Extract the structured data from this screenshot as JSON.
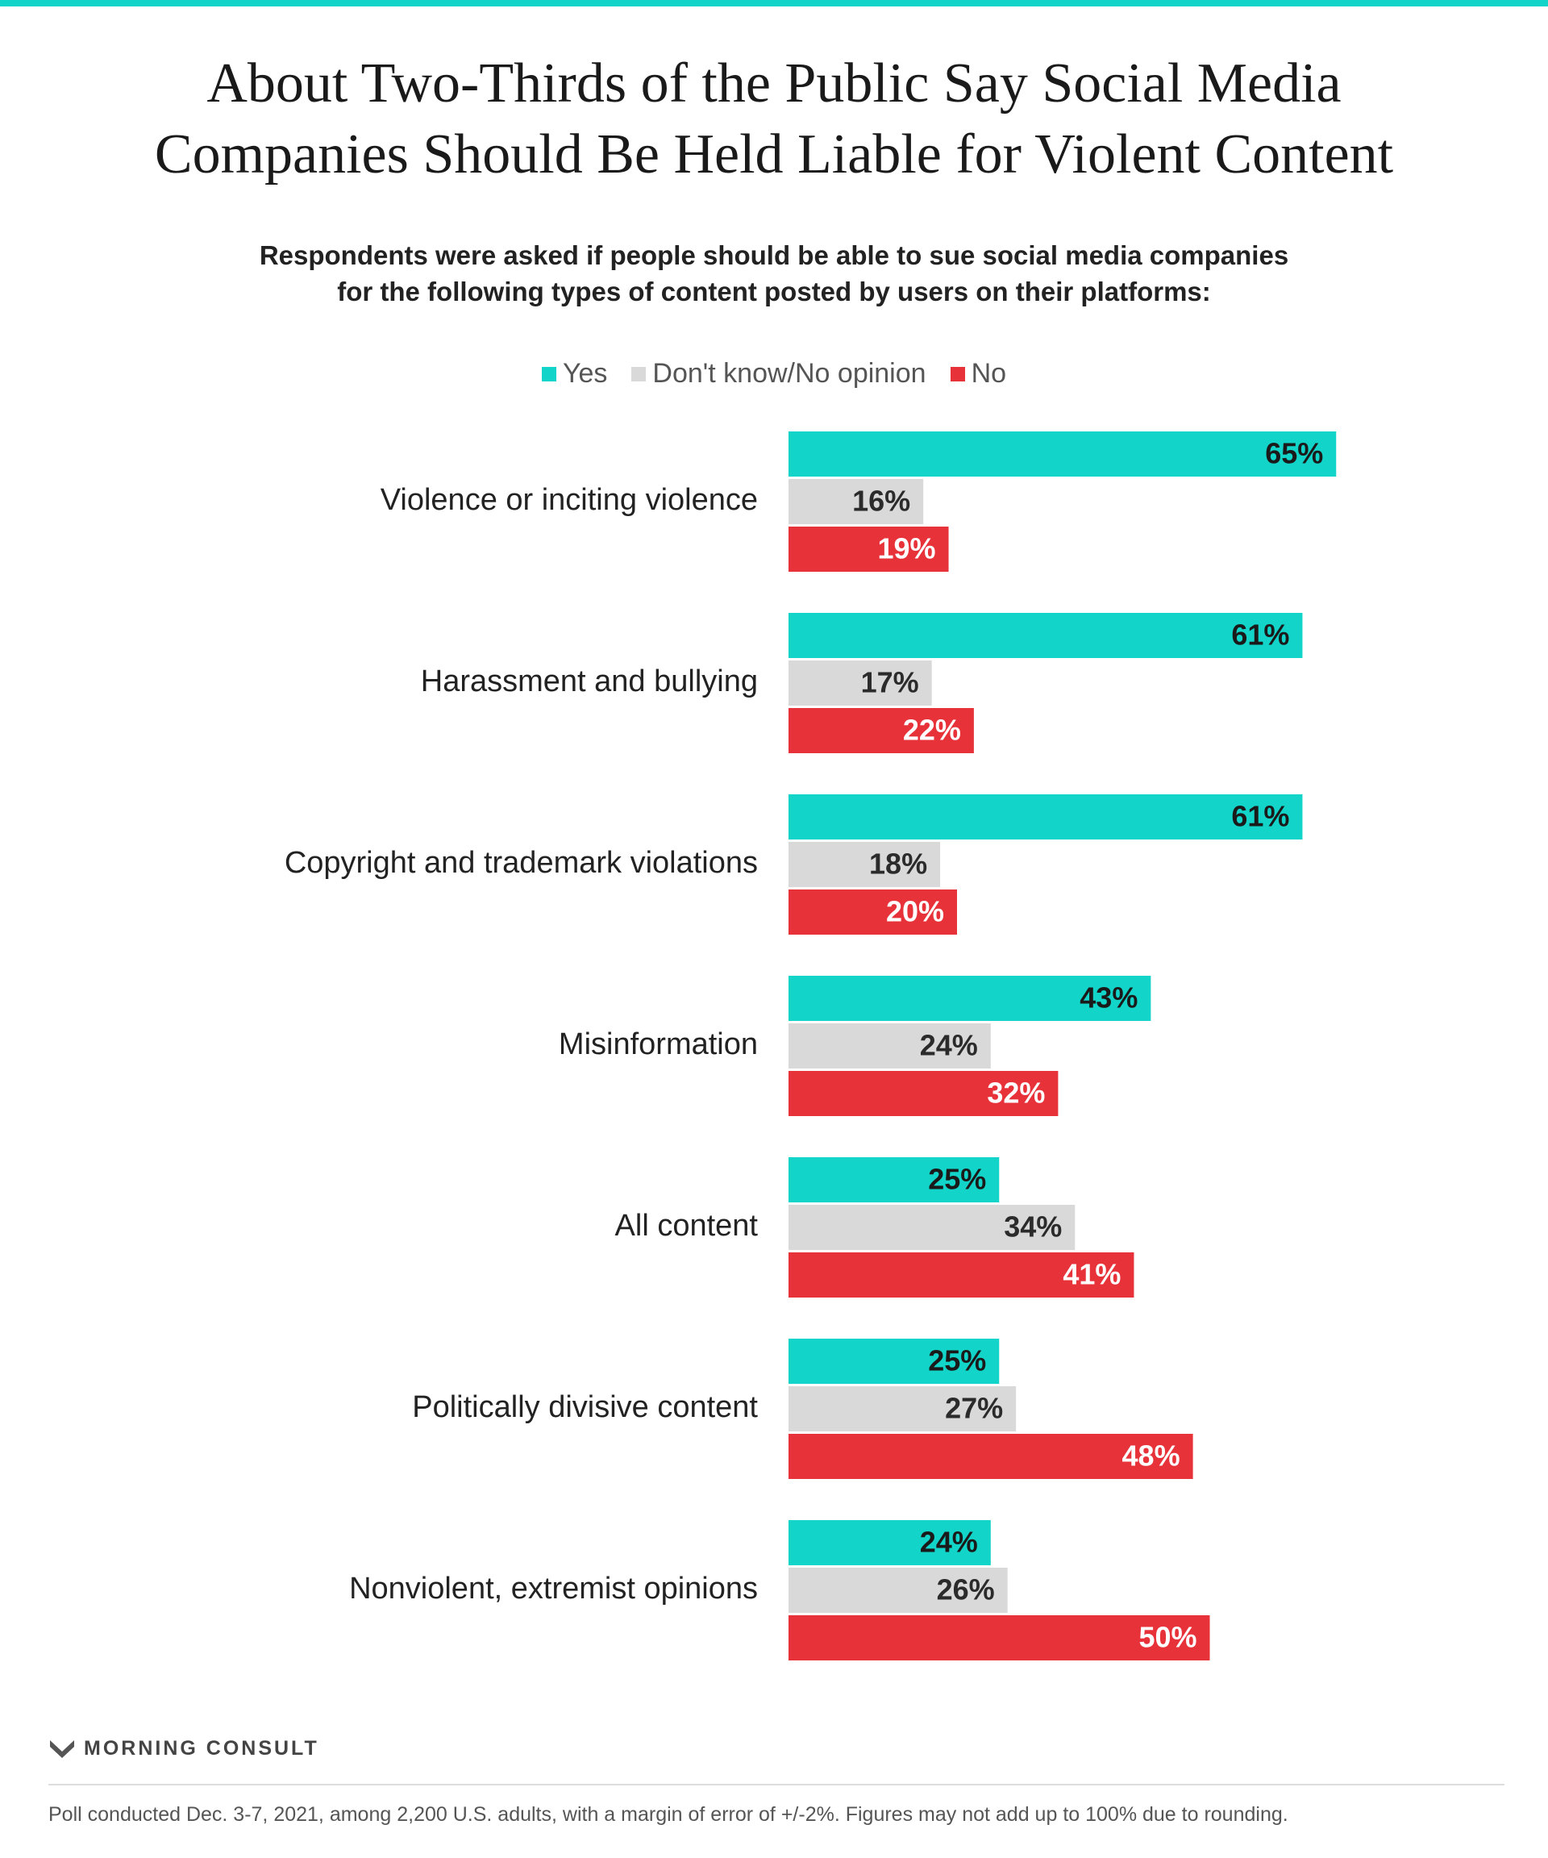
{
  "colors": {
    "yes": "#12d4c8",
    "dk": "#d9d9d9",
    "no": "#e8323a",
    "accent_bar": "#12d4c8"
  },
  "header": {
    "title_line1": "About Two-Thirds of the Public Say Social Media",
    "title_line2": "Companies Should Be Held Liable for Violent Content",
    "subtitle_line1": "Respondents were asked if people should be able to sue social media companies",
    "subtitle_line2": "for the following types of content posted by users on their platforms:"
  },
  "legend": {
    "yes": "Yes",
    "dk": "Don't know/No opinion",
    "no": "No"
  },
  "chart_data": {
    "type": "bar",
    "orientation": "horizontal",
    "categories": [
      "Violence or inciting violence",
      "Harassment and bullying",
      "Copyright and trademark violations",
      "Misinformation",
      "All content",
      "Politically divisive content",
      "Nonviolent, extremist opinions"
    ],
    "series": [
      {
        "name": "Yes",
        "key": "yes",
        "values": [
          65,
          61,
          61,
          43,
          25,
          25,
          24
        ]
      },
      {
        "name": "Don't know/No opinion",
        "key": "dk",
        "values": [
          16,
          17,
          18,
          24,
          34,
          27,
          26
        ]
      },
      {
        "name": "No",
        "key": "no",
        "values": [
          19,
          22,
          20,
          32,
          41,
          48,
          50
        ]
      }
    ],
    "value_suffix": "%",
    "xlim": [
      0,
      100
    ],
    "legend_position": "top-center",
    "grid": false
  },
  "footer": {
    "brand": "MORNING CONSULT",
    "note": "Poll conducted Dec. 3-7, 2021, among 2,200 U.S. adults, with a margin of error of +/-2%. Figures may not add up to 100% due to rounding."
  }
}
